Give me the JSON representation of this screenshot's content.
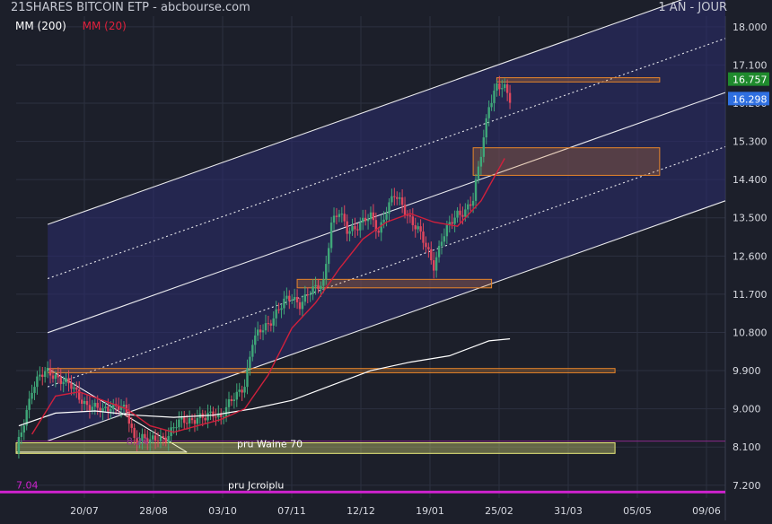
{
  "header": {
    "title": "21SHARES BITCOIN ETP - abcbourse.com",
    "period": "1 AN - JOUR"
  },
  "legend": {
    "ma200": "MM (200)",
    "ma20": "MM (20)"
  },
  "colors": {
    "background": "#1c1f2a",
    "grid": "#2c3040",
    "candle_up": "#3fa779",
    "candle_down": "#e0475e",
    "ma20": "#d0203c",
    "ma200": "#ffffff",
    "zone_orange": "#e8862a",
    "zone_yellow": "#e9ea7a",
    "channel_fill": "#2c2c6e",
    "purple_line": "#cc22cc",
    "price_box_green": "#1f8a2d",
    "price_box_blue": "#2f6fe0"
  },
  "chart_data": {
    "type": "candlestick",
    "xlabels": [
      "20/07",
      "28/08",
      "03/10",
      "07/11",
      "12/12",
      "19/01",
      "25/02",
      "31/03",
      "05/05",
      "09/06"
    ],
    "ylabels": [
      "18.000",
      "17.100",
      "16.200",
      "15.300",
      "14.400",
      "13.500",
      "12.600",
      "11.700",
      "10.800",
      "9.900",
      "9.000",
      "8.100",
      "7.200"
    ],
    "ylim": [
      6.9,
      18.25
    ],
    "yticks": [
      18.0,
      17.1,
      16.2,
      15.3,
      14.4,
      13.5,
      12.6,
      11.7,
      10.8,
      9.9,
      9.0,
      8.1,
      7.2
    ],
    "close_tag": "16.757",
    "last_tag": "16.298",
    "close_value": 16.757,
    "last_value": 16.298,
    "annotations": {
      "pru_waine": "pru Waine 70",
      "pru_jcroiplu": "pru Jcroiplu",
      "level_824": "8.24",
      "level_704": "7.04"
    },
    "levels": {
      "pru_waine": 8.24,
      "pru_jcroiplu": 7.04
    },
    "close_path": [
      [
        0,
        7.95
      ],
      [
        3,
        8.7
      ],
      [
        6,
        9.5
      ],
      [
        9,
        9.75
      ],
      [
        12,
        9.85
      ],
      [
        15,
        9.8
      ],
      [
        18,
        9.65
      ],
      [
        21,
        9.5
      ],
      [
        24,
        9.3
      ],
      [
        27,
        9.1
      ],
      [
        30,
        9.0
      ],
      [
        33,
        8.95
      ],
      [
        36,
        9.1
      ],
      [
        39,
        9.05
      ],
      [
        42,
        8.9
      ],
      [
        45,
        8.3
      ],
      [
        48,
        8.35
      ],
      [
        51,
        8.2
      ],
      [
        54,
        8.3
      ],
      [
        57,
        8.35
      ],
      [
        60,
        8.55
      ],
      [
        63,
        8.7
      ],
      [
        66,
        8.75
      ],
      [
        69,
        8.8
      ],
      [
        72,
        8.75
      ],
      [
        75,
        8.9
      ],
      [
        78,
        8.85
      ],
      [
        81,
        9.1
      ],
      [
        84,
        9.3
      ],
      [
        87,
        9.6
      ],
      [
        90,
        10.6
      ],
      [
        93,
        10.8
      ],
      [
        96,
        11.0
      ],
      [
        99,
        11.3
      ],
      [
        102,
        11.5
      ],
      [
        105,
        11.6
      ],
      [
        108,
        11.5
      ],
      [
        111,
        11.7
      ],
      [
        114,
        11.8
      ],
      [
        117,
        12.0
      ],
      [
        120,
        13.4
      ],
      [
        123,
        13.6
      ],
      [
        126,
        13.2
      ],
      [
        129,
        13.3
      ],
      [
        132,
        13.4
      ],
      [
        135,
        13.5
      ],
      [
        138,
        13.2
      ],
      [
        141,
        13.7
      ],
      [
        144,
        14.0
      ],
      [
        147,
        13.8
      ],
      [
        150,
        13.5
      ],
      [
        153,
        13.2
      ],
      [
        156,
        12.8
      ],
      [
        159,
        12.4
      ],
      [
        162,
        13.0
      ],
      [
        165,
        13.3
      ],
      [
        168,
        13.6
      ],
      [
        171,
        13.7
      ],
      [
        174,
        13.9
      ],
      [
        177,
        15.0
      ],
      [
        180,
        16.2
      ],
      [
        183,
        16.6
      ],
      [
        186,
        16.5
      ],
      [
        188,
        16.3
      ]
    ],
    "ma20": [
      [
        6,
        8.4
      ],
      [
        15,
        9.3
      ],
      [
        24,
        9.4
      ],
      [
        33,
        9.2
      ],
      [
        42,
        9.0
      ],
      [
        51,
        8.6
      ],
      [
        60,
        8.45
      ],
      [
        69,
        8.6
      ],
      [
        78,
        8.75
      ],
      [
        87,
        9.0
      ],
      [
        96,
        9.8
      ],
      [
        105,
        10.9
      ],
      [
        114,
        11.5
      ],
      [
        123,
        12.3
      ],
      [
        132,
        13.0
      ],
      [
        141,
        13.4
      ],
      [
        150,
        13.6
      ],
      [
        159,
        13.4
      ],
      [
        168,
        13.3
      ],
      [
        177,
        13.9
      ],
      [
        186,
        14.9
      ]
    ],
    "ma200": [
      [
        1,
        8.6
      ],
      [
        15,
        8.9
      ],
      [
        30,
        8.95
      ],
      [
        45,
        8.85
      ],
      [
        60,
        8.8
      ],
      [
        75,
        8.85
      ],
      [
        90,
        9.0
      ],
      [
        105,
        9.2
      ],
      [
        120,
        9.55
      ],
      [
        135,
        9.9
      ],
      [
        150,
        10.1
      ],
      [
        165,
        10.25
      ],
      [
        180,
        10.6
      ],
      [
        188,
        10.65
      ]
    ],
    "zones": [
      {
        "color": "orange",
        "x": [
          174,
          245
        ],
        "y": [
          14.5,
          15.15
        ]
      },
      {
        "color": "orange",
        "x": [
          183,
          245
        ],
        "y": [
          16.7,
          16.8
        ]
      },
      {
        "color": "orange",
        "x": [
          107,
          181
        ],
        "y": [
          11.85,
          12.05
        ]
      },
      {
        "color": "orange",
        "x": [
          12,
          228
        ],
        "y": [
          9.85,
          9.95
        ]
      },
      {
        "color": "yellow",
        "x": [
          0,
          228
        ],
        "y": [
          7.95,
          8.2
        ]
      }
    ],
    "channel": {
      "lower_start": [
        0,
        7.98
      ],
      "lower_end": [
        270,
        13.9
      ],
      "width": 2.55,
      "lines": [
        "top",
        "mid-dotted",
        "mid",
        "lower-dotted",
        "bottom"
      ]
    }
  }
}
